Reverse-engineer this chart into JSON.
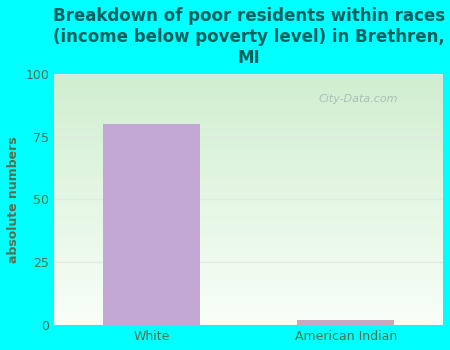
{
  "title": "Breakdown of poor residents within races\n(income below poverty level) in Brethren,\nMI",
  "categories": [
    "White",
    "American Indian"
  ],
  "values": [
    80,
    2
  ],
  "bar_colors": [
    "#c4a8d4",
    "#c8a8c0"
  ],
  "ylabel": "absolute numbers",
  "ylim": [
    0,
    100
  ],
  "yticks": [
    0,
    25,
    50,
    75,
    100
  ],
  "bg_color": "#00ffff",
  "title_color": "#006060",
  "label_color": "#507050",
  "tick_color": "#507050",
  "grid_color": "#e0ece0",
  "watermark": "City-Data.com",
  "title_fontsize": 12,
  "label_fontsize": 9,
  "tick_fontsize": 9,
  "grad_top_left": "#d8edd8",
  "grad_bottom_right": "#f8fff8"
}
